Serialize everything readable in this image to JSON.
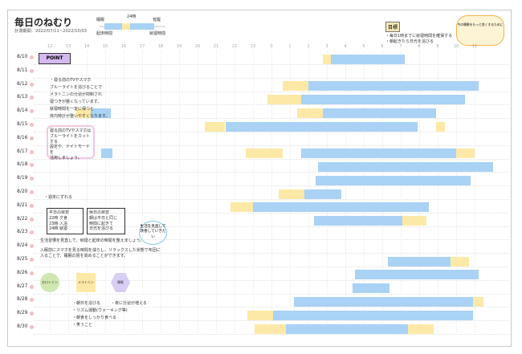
{
  "header": {
    "title": "毎日のねむり",
    "period": "計測期間：2022/07/11~2022/10/03"
  },
  "legend": {
    "labels": [
      "24時",
      "睡眠",
      "覚醒",
      "起床時間",
      "就寝時間"
    ]
  },
  "hours": [
    "12",
    "13",
    "14",
    "15",
    "16",
    "17",
    "18",
    "19",
    "20",
    "21",
    "22",
    "23",
    "0",
    "1",
    "2",
    "3",
    "4",
    "5",
    "6",
    "7",
    "8",
    "9",
    "10",
    "11"
  ],
  "rows": [
    "8/10",
    "8/11",
    "8/12",
    "8/13",
    "8/14",
    "8/15",
    "8/16",
    "8/17",
    "8/18",
    "8/19",
    "8/20",
    "8/21",
    "8/22",
    "8/23",
    "8/24",
    "8/25",
    "8/26",
    "8/27",
    "8/28",
    "8/29",
    "8/30"
  ],
  "goal": {
    "tag": "目標",
    "lines": [
      "・毎日1時までに就寝時間を確保する",
      "・朝起きたら日光を浴びる"
    ]
  },
  "cloud_text": "今の睡眠をもっと良くするために",
  "notes": {
    "point_tag": "POINT",
    "point_items": [
      "・寝る前のTVやスマホ",
      "ブルーライトを浴びることで",
      "メラトニンの分泌が抑制され",
      "寝つきが悪くなっています。",
      "就寝時間を一定に保つと",
      "体内時計が整いやすくなります。"
    ],
    "pink_box": [
      "寝る前のTVやスマホは",
      "ブルーライトをカットする",
      "設定や、ナイトモードを",
      "活用しましょう。"
    ],
    "weekend": "・週末にずれる",
    "plan_left": [
      "平日の目安",
      "22時 夕食",
      "23時 入浴",
      "24時 就寝"
    ],
    "plan_right": [
      "休日の目安",
      "朝は平日と同じ",
      "時間に起きて",
      "日光を浴びる"
    ],
    "bubble": "生活を見直して改善していきたい",
    "advice_title": "生活習慣を見直して、就寝と起床の時間を整えましょう。",
    "advice": "入眠前にスマホを見る時間を減らし、リラックスした状態で布団に入ることで、睡眠の質を高めることができます。",
    "flow": [
      "セロトニン",
      "メラトニン",
      "睡眠"
    ],
    "checks": [
      "・朝日を浴びる",
      "・リズム運動(ウォーキング等)",
      "・朝食をしっかり食べる",
      "・笑うこと"
    ],
    "flow_note": "・夜に分泌が増える"
  }
}
